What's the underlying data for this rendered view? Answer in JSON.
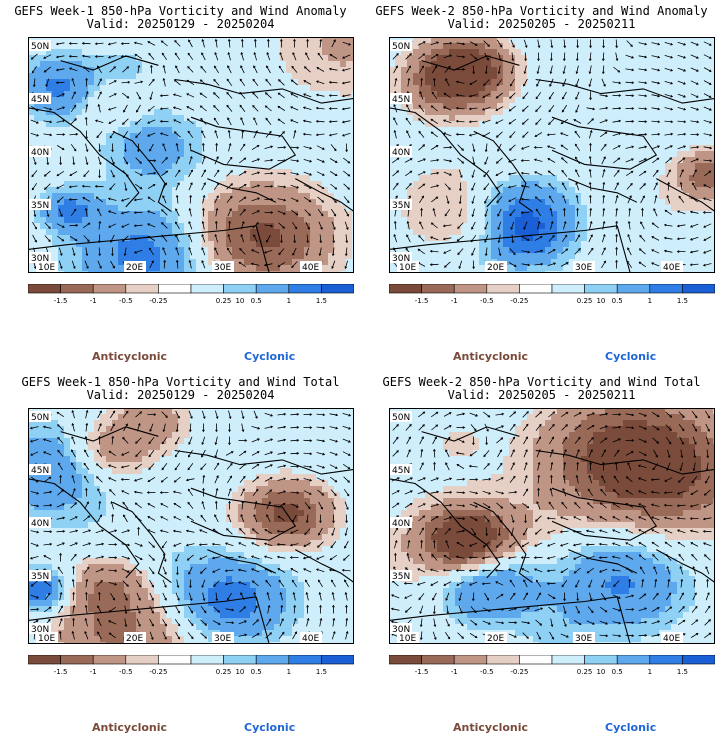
{
  "panels": [
    {
      "title": "GEFS Week-1 850-hPa Vorticity and Wind Anomaly",
      "valid": "Valid: 20250129 - 20250204",
      "seed": 11
    },
    {
      "title": "GEFS Week-2 850-hPa Vorticity and Wind Anomaly",
      "valid": "Valid: 20250205 - 20250211",
      "seed": 27
    },
    {
      "title": "GEFS Week-1 850-hPa Vorticity and Wind Total",
      "valid": "Valid: 20250129 - 20250204",
      "seed": 43
    },
    {
      "title": "GEFS Week-2 850-hPa Vorticity and Wind Total",
      "valid": "Valid: 20250205 - 20250211",
      "seed": 59
    }
  ],
  "axes": {
    "lon_ticks": [
      "10E",
      "20E",
      "30E",
      "40E"
    ],
    "lat_ticks": [
      "50N",
      "45N",
      "40N",
      "35N",
      "30N"
    ]
  },
  "colorbar": {
    "labels": [
      "-1.5",
      "-1",
      "-0.5",
      "-0.25",
      "0.25",
      "0.5",
      "1",
      "1.5"
    ],
    "multiplier": "10",
    "colors": [
      "#7a4a3a",
      "#9a6a58",
      "#bf9585",
      "#e6cfc5",
      "#ffffff",
      "#cfeefb",
      "#8fd0f5",
      "#5ea8ee",
      "#2f7ee6",
      "#1a5fd6"
    ]
  },
  "legend": {
    "anticyclonic": "Anticyclonic",
    "cyclonic": "Cyclonic"
  },
  "colors": {
    "anticyclonic": "#7a4a3a",
    "cyclonic": "#1f66d6"
  }
}
